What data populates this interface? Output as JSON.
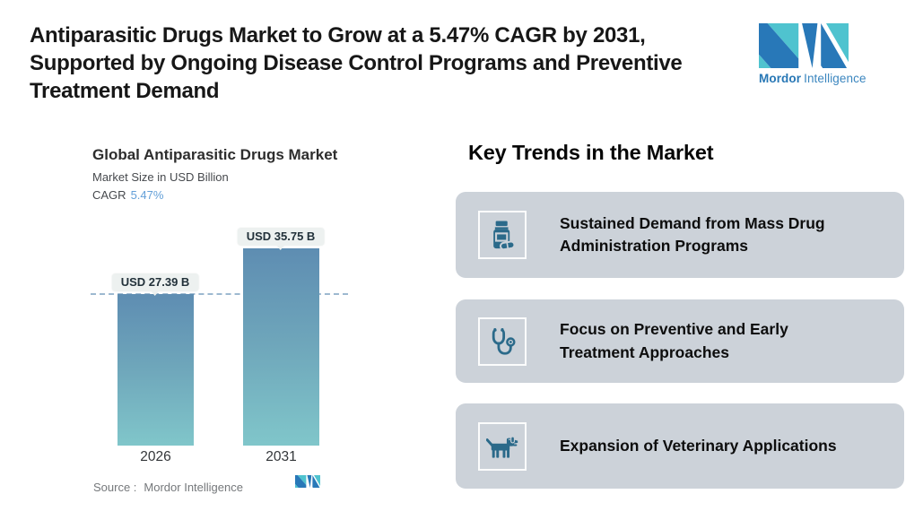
{
  "header": {
    "title_lines": [
      "Antiparasitic Drugs Market to Grow at a 5.47% CAGR by 2031,",
      "Supported by Ongoing Disease Control Programs and Preventive",
      "Treatment Demand"
    ],
    "logo": {
      "brand_bold": "Mordor",
      "brand_regular": "Intelligence"
    }
  },
  "chart": {
    "title": "Global Antiparasitic Drugs Market",
    "subtitle": "Market Size in USD Billion",
    "cagr_label": "CAGR",
    "cagr_value": "5.47%",
    "source_label": "Source :",
    "source_value": "Mordor Intelligence"
  },
  "chart_data": {
    "type": "bar",
    "title": "Global Antiparasitic Drugs Market",
    "ylabel": "Market Size in USD Billion",
    "categories": [
      "2026",
      "2031"
    ],
    "values": [
      27.39,
      35.75
    ],
    "value_labels": [
      "USD 27.39 B",
      "USD 35.75 B"
    ],
    "cagr": "5.47%",
    "reference_line": 27.39,
    "grid": false,
    "legend": false
  },
  "trends": {
    "heading": "Key Trends in the Market",
    "cards": [
      {
        "icon": "pill-bottle-icon",
        "lines": [
          "Sustained Demand from Mass Drug",
          "Administration Programs"
        ]
      },
      {
        "icon": "stethoscope-icon",
        "lines": [
          "Focus on Preventive and Early",
          "Treatment Approaches"
        ]
      },
      {
        "icon": "dog-icon",
        "lines": [
          "Expansion of Veterinary Applications"
        ]
      }
    ]
  },
  "colors": {
    "brand_blue": "#2878b8",
    "brand_teal": "#4fc3cf",
    "bar_gradient_top": "#5e8db2",
    "bar_gradient_bottom": "#80c6ca",
    "dashed_reference": "#9db9d0",
    "cagr_accent": "#64a0d8",
    "card_background": "#ccd2d9",
    "trend_icon": "#2b6a8a",
    "value_pill_bg": "#edf1f0"
  }
}
